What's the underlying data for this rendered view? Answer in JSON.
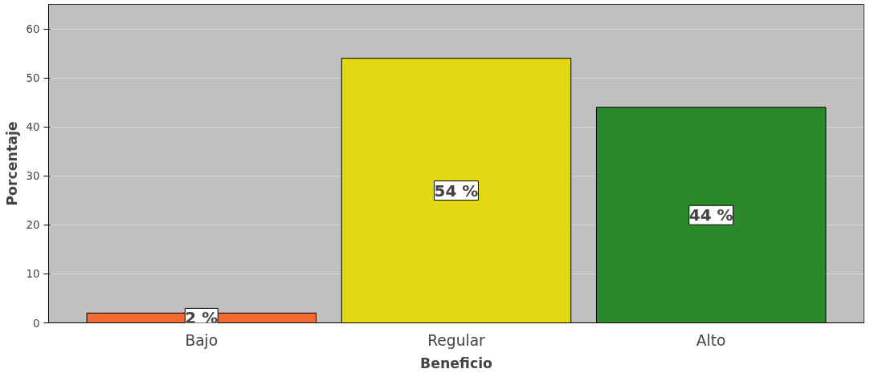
{
  "chart_data": {
    "type": "bar",
    "xlabel": "Beneficio",
    "ylabel": "Porcentaje",
    "categories": [
      "Bajo",
      "Regular",
      "Alto"
    ],
    "values": [
      2,
      54,
      44
    ],
    "colors": [
      "#f26a2e",
      "#e3d712",
      "#2a8a2a"
    ],
    "value_labels": [
      "2 %",
      "54 %",
      "44 %"
    ],
    "ylim": [
      0,
      65
    ],
    "yticks": [
      0,
      10,
      20,
      30,
      40,
      50,
      60
    ],
    "grid": "y"
  }
}
